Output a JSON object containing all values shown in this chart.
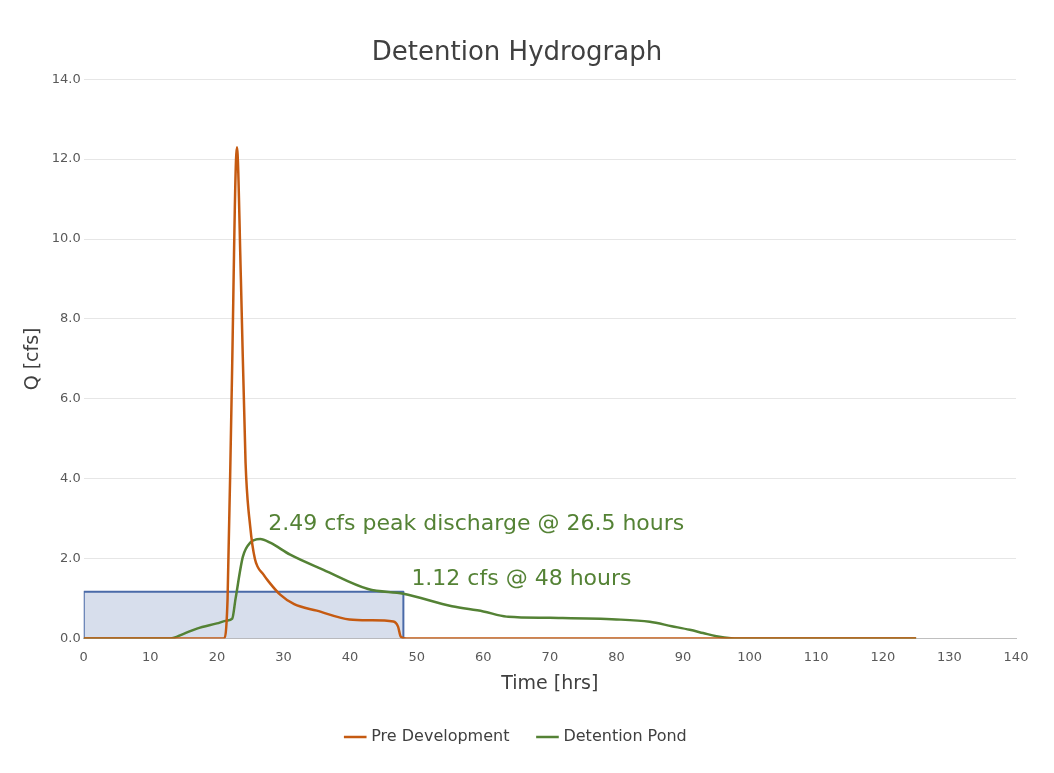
{
  "chart_data": {
    "type": "line",
    "title": "Detention Hydrograph",
    "xlabel": "Time [hrs]",
    "ylabel": "Q [cfs]",
    "xlim": [
      0,
      140
    ],
    "xticks": [
      0,
      10,
      20,
      30,
      40,
      50,
      60,
      70,
      80,
      90,
      100,
      110,
      120,
      130,
      140
    ],
    "ylim": [
      0,
      14
    ],
    "yticks": [
      {
        "value": 0,
        "label": "0.0"
      },
      {
        "value": 2,
        "label": "2.0"
      },
      {
        "value": 4,
        "label": "4.0"
      },
      {
        "value": 6,
        "label": "6.0"
      },
      {
        "value": 8,
        "label": "8.0"
      },
      {
        "value": 10,
        "label": "10.0"
      },
      {
        "value": 12,
        "label": "12.0"
      },
      {
        "value": 14,
        "label": "14.0"
      }
    ],
    "grid": "y",
    "legend": "bottom",
    "series": [
      {
        "type": "area",
        "color": "#4a6aa8",
        "x": [
          0,
          0,
          48,
          48
        ],
        "values": [
          0,
          1.17,
          1.17,
          0
        ]
      },
      {
        "name": "Pre Development",
        "color": "#c55a11",
        "x": [
          0,
          21,
          21.6,
          22.2,
          23,
          23.6,
          24.3,
          25,
          25.7,
          27,
          27.9,
          29.5,
          31.6,
          35,
          39.9,
          43,
          46.5,
          47.2,
          47.6,
          48.5,
          125
        ],
        "values": [
          0,
          0,
          1,
          6,
          12.3,
          9,
          4.4,
          2.8,
          2,
          1.6,
          1.4,
          1.1,
          0.86,
          0.7,
          0.48,
          0.46,
          0.43,
          0.3,
          0.05,
          0,
          0
        ]
      },
      {
        "name": "Detention Pond",
        "color": "#548235",
        "x": [
          0,
          13,
          15,
          17,
          20,
          21.5,
          22.3,
          22.8,
          23.9,
          25,
          26.5,
          28,
          31,
          36,
          42.7,
          48,
          55.3,
          60,
          63.5,
          70,
          80,
          85,
          88.3,
          91,
          93,
          95,
          97.2,
          100,
          125
        ],
        "values": [
          0,
          0,
          0.12,
          0.25,
          0.38,
          0.45,
          0.5,
          1,
          2.05,
          2.4,
          2.49,
          2.4,
          2.1,
          1.72,
          1.24,
          1.12,
          0.81,
          0.68,
          0.55,
          0.52,
          0.48,
          0.42,
          0.31,
          0.22,
          0.14,
          0.06,
          0.01,
          0,
          0
        ]
      }
    ],
    "annotations": [
      {
        "text": "2.49 cfs peak discharge @ 26.5 hours",
        "x": 26.5,
        "y": 2.49
      },
      {
        "text": "1.12 cfs @ 48 hours",
        "x": 48,
        "y": 1.12
      }
    ]
  }
}
